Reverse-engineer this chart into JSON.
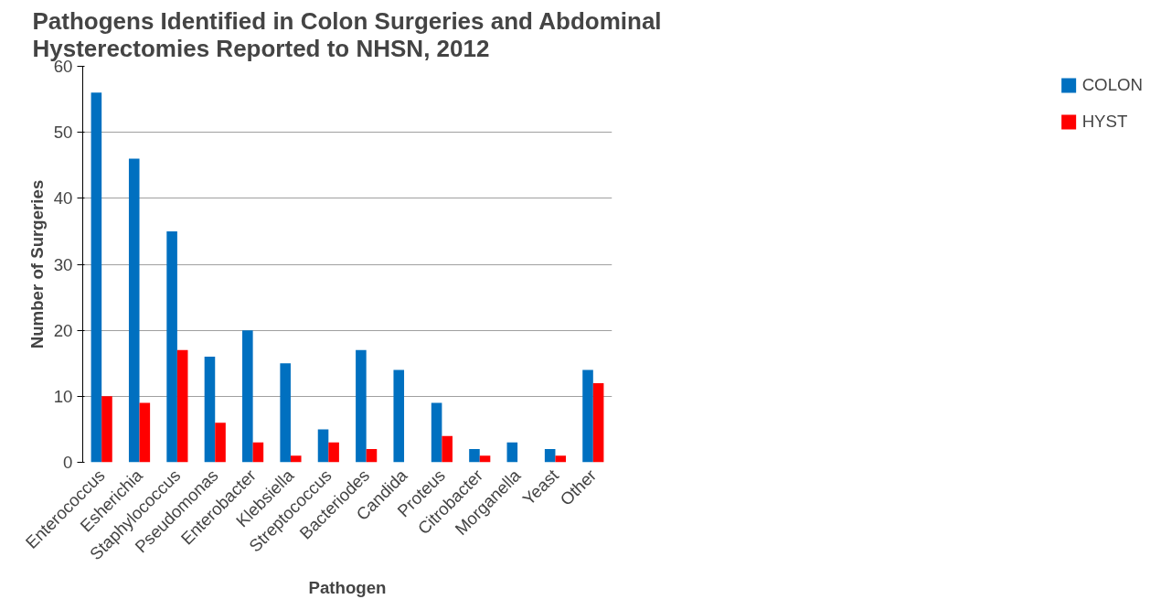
{
  "chart_data": {
    "type": "bar",
    "title": "Pathogens Identified in Colon Surgeries and Abdominal\nHysterectomies Reported to NHSN, 2012",
    "xlabel": "Pathogen",
    "ylabel": "Number of Surgeries",
    "categories": [
      "Enterococcus",
      "Esherichia",
      "Staphylococcus",
      "Pseudomonas",
      "Enterobacter",
      "Klebsiella",
      "Streptococcus",
      "Bacteriodes",
      "Candida",
      "Proteus",
      "Citrobacter",
      "Morganella",
      "Yeast",
      "Other"
    ],
    "series": [
      {
        "name": "COLON",
        "color": "#0070c0",
        "values": [
          56,
          46,
          35,
          16,
          20,
          15,
          5,
          17,
          14,
          9,
          2,
          3,
          2,
          14
        ]
      },
      {
        "name": "HYST",
        "color": "#ff0000",
        "values": [
          10,
          9,
          17,
          6,
          3,
          1,
          3,
          2,
          0,
          4,
          1,
          0,
          1,
          12
        ]
      }
    ],
    "ylim": [
      0,
      60
    ],
    "yticks": [
      0,
      10,
      20,
      30,
      40,
      50,
      60
    ],
    "grid": "y",
    "legend": "right"
  }
}
